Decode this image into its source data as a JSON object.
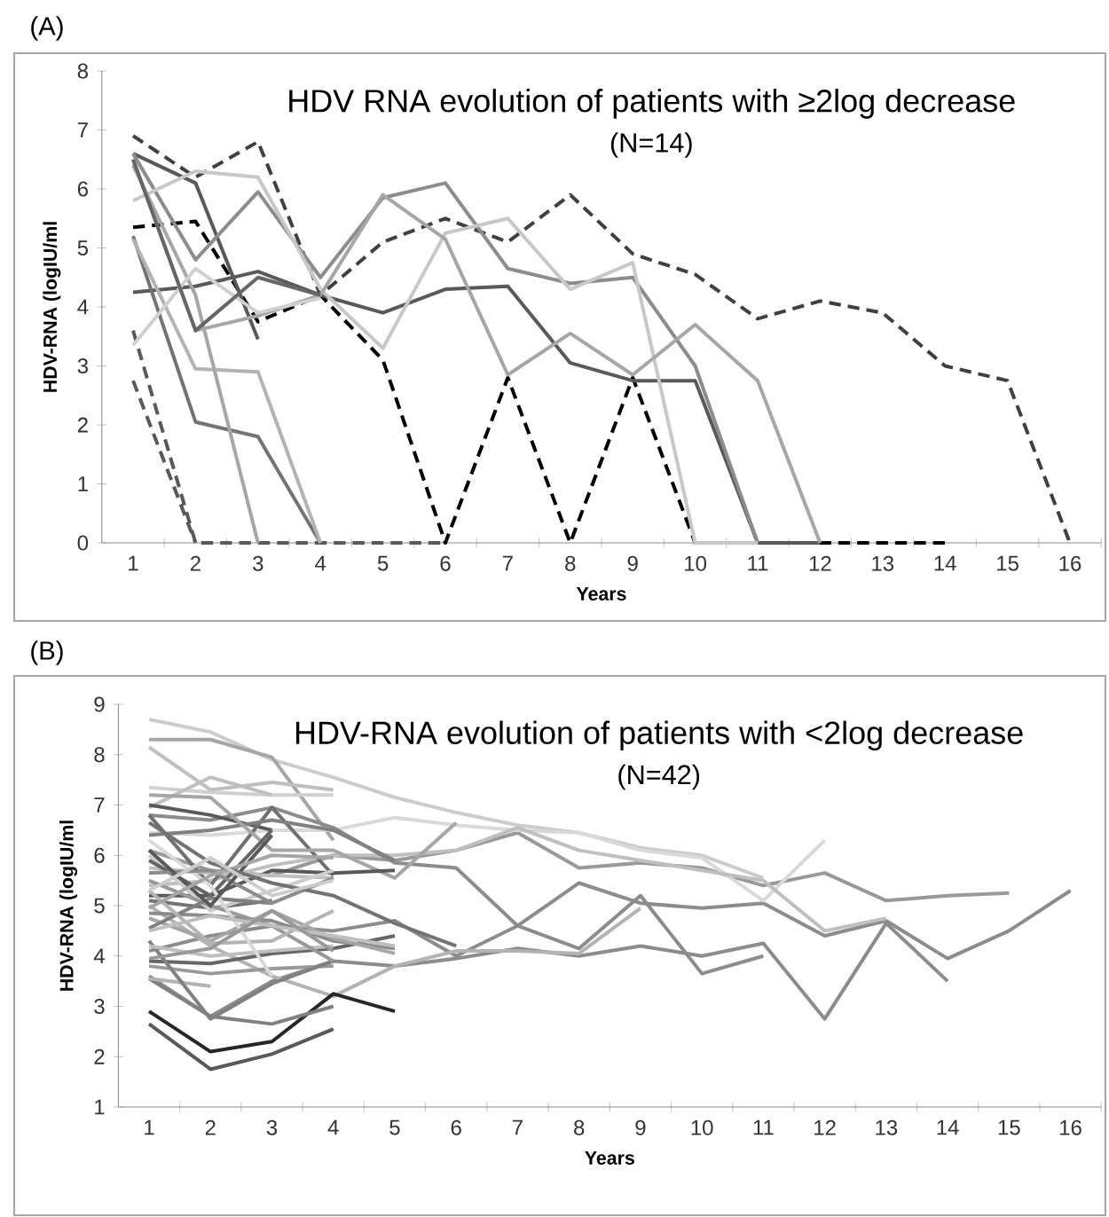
{
  "chart_data": [
    {
      "type": "line",
      "title": "HDV RNA evolution of patients with ≥2log decrease",
      "subtitle": "(N=14)",
      "xlabel": "Years",
      "ylabel": "HDV-RNA (logIU/ml",
      "annotations": [
        "(A)"
      ],
      "categories": [
        "1",
        "2",
        "3",
        "4",
        "5",
        "6",
        "7",
        "8",
        "9",
        "10",
        "11",
        "12",
        "13",
        "14",
        "15",
        "16"
      ],
      "ylim": [
        0,
        8
      ],
      "yticks": [
        0,
        1,
        2,
        3,
        4,
        5,
        6,
        7,
        8
      ],
      "series": [
        {
          "color": "#404040",
          "line_style": "dashed",
          "values": [
            6.9,
            6.2,
            6.8,
            4.2,
            5.1,
            5.5,
            5.1,
            5.9,
            4.9,
            4.55,
            3.8,
            4.1,
            3.9,
            3.0,
            2.75,
            0
          ]
        },
        {
          "color": "#000000",
          "line_style": "dashed",
          "values": [
            5.35,
            5.45,
            3.75,
            4.2,
            3.1,
            0,
            2.8,
            0,
            2.8,
            0,
            0,
            0,
            0,
            0,
            null,
            null
          ]
        },
        {
          "color": "#595959",
          "line_style": "dashed",
          "values": [
            3.6,
            0,
            0,
            0,
            0,
            0,
            null,
            null,
            null,
            null,
            null,
            null,
            null,
            null,
            null,
            null
          ]
        },
        {
          "color": "#595959",
          "line_style": "dashed",
          "values": [
            2.75,
            0,
            null,
            null,
            null,
            null,
            null,
            null,
            null,
            null,
            null,
            null,
            null,
            null,
            null,
            null
          ]
        },
        {
          "color": "#595959",
          "line_style": "solid",
          "values": [
            4.25,
            4.35,
            4.6,
            4.2,
            3.9,
            4.3,
            4.35,
            3.05,
            2.75,
            2.75,
            0,
            0,
            null,
            null,
            null,
            null
          ]
        },
        {
          "color": "#595959",
          "line_style": "solid",
          "values": [
            6.6,
            6.1,
            3.45,
            null,
            null,
            null,
            null,
            null,
            null,
            null,
            null,
            null,
            null,
            null,
            null,
            null
          ]
        },
        {
          "color": "#8c8c8c",
          "line_style": "solid",
          "values": [
            6.6,
            4.8,
            5.95,
            4.5,
            5.85,
            6.1,
            4.65,
            4.4,
            4.5,
            3.0,
            0,
            null,
            null,
            null,
            null,
            null
          ]
        },
        {
          "color": "#c8c8c8",
          "line_style": "solid",
          "values": [
            5.8,
            6.3,
            6.2,
            4.3,
            3.3,
            5.25,
            5.5,
            4.3,
            4.75,
            0,
            0,
            null,
            null,
            null,
            null,
            null
          ]
        },
        {
          "color": "#a6a6a6",
          "line_style": "solid",
          "values": [
            6.5,
            3.6,
            3.85,
            4.2,
            5.9,
            5.15,
            2.85,
            3.55,
            2.85,
            3.7,
            2.75,
            0,
            null,
            null,
            null,
            null
          ]
        },
        {
          "color": "#737373",
          "line_style": "solid",
          "values": [
            5.2,
            2.05,
            1.8,
            0,
            null,
            null,
            null,
            null,
            null,
            null,
            null,
            null,
            null,
            null,
            null,
            null
          ]
        },
        {
          "color": "#b3b3b3",
          "line_style": "solid",
          "values": [
            5.15,
            2.95,
            2.9,
            0,
            null,
            null,
            null,
            null,
            null,
            null,
            null,
            null,
            null,
            null,
            null,
            null
          ]
        },
        {
          "color": "#a6a6a6",
          "line_style": "solid",
          "values": [
            6.4,
            4.2,
            0,
            null,
            null,
            null,
            null,
            null,
            null,
            null,
            null,
            null,
            null,
            null,
            null,
            null
          ]
        },
        {
          "color": "#d0d0d0",
          "line_style": "solid",
          "values": [
            3.35,
            4.65,
            3.9,
            4.15,
            null,
            null,
            null,
            null,
            null,
            null,
            null,
            null,
            null,
            null,
            null,
            null
          ]
        },
        {
          "color": "#666666",
          "line_style": "solid",
          "values": [
            6.5,
            3.6,
            4.5,
            4.2,
            null,
            null,
            null,
            null,
            null,
            null,
            null,
            null,
            null,
            null,
            null,
            null
          ]
        }
      ]
    },
    {
      "type": "line",
      "title": "HDV-RNA evolution of patients with <2log decrease",
      "subtitle": "(N=42)",
      "xlabel": "Years",
      "ylabel": "HDV-RNA (logIU/ml",
      "annotations": [
        "(B)"
      ],
      "categories": [
        "1",
        "2",
        "3",
        "4",
        "5",
        "6",
        "7",
        "8",
        "9",
        "10",
        "11",
        "12",
        "13",
        "14",
        "15",
        "16"
      ],
      "ylim": [
        1,
        9
      ],
      "yticks": [
        1,
        2,
        3,
        4,
        5,
        6,
        7,
        8,
        9
      ],
      "series": [
        {
          "color": "#cccccc",
          "values": [
            8.7,
            8.45,
            7.9,
            7.55,
            7.15,
            6.85,
            6.6,
            6.45,
            6.15,
            6.0,
            5.55,
            null,
            null,
            null,
            null,
            null
          ]
        },
        {
          "color": "#a6a6a6",
          "values": [
            8.3,
            8.3,
            7.95,
            6.3,
            null,
            null,
            null,
            null,
            null,
            null,
            null,
            null,
            null,
            null,
            null,
            null
          ]
        },
        {
          "color": "#bfbfbf",
          "values": [
            8.15,
            7.3,
            7.45,
            7.3,
            null,
            null,
            null,
            null,
            null,
            null,
            null,
            null,
            null,
            null,
            null,
            null
          ]
        },
        {
          "color": "#d0d0d0",
          "values": [
            7.35,
            7.25,
            7.2,
            7.2,
            null,
            null,
            null,
            null,
            null,
            null,
            null,
            null,
            null,
            null,
            null,
            null
          ]
        },
        {
          "color": "#bfbfbf",
          "values": [
            6.95,
            7.55,
            7.2,
            null,
            null,
            null,
            null,
            null,
            null,
            null,
            null,
            null,
            null,
            null,
            null,
            null
          ]
        },
        {
          "color": "#999999",
          "values": [
            6.1,
            5.7,
            5.6,
            6.0,
            5.9,
            6.1,
            6.45,
            5.75,
            5.85,
            5.75,
            5.4,
            5.65,
            5.1,
            5.2,
            5.25,
            null
          ]
        },
        {
          "color": "#8c8c8c",
          "values": [
            4.1,
            4.4,
            4.6,
            4.5,
            4.7,
            4.0,
            4.6,
            5.45,
            5.05,
            4.95,
            5.05,
            4.4,
            4.7,
            3.95,
            4.5,
            5.3
          ]
        },
        {
          "color": "#8c8c8c",
          "values": [
            3.6,
            2.8,
            3.5,
            3.9,
            3.8,
            3.95,
            4.15,
            4.0,
            4.2,
            4.0,
            4.25,
            2.75,
            4.65,
            3.5,
            null,
            null
          ]
        },
        {
          "color": "#d9d9d9",
          "values": [
            6.45,
            6.4,
            6.5,
            6.5,
            6.75,
            6.6,
            6.5,
            6.45,
            6.1,
            5.95,
            5.1,
            6.3,
            null,
            null,
            null,
            null
          ]
        },
        {
          "color": "#bfbfbf",
          "values": [
            5.4,
            5.5,
            5.8,
            6.0,
            6.0,
            6.1,
            6.55,
            6.1,
            5.9,
            5.7,
            5.5,
            4.5,
            4.75,
            null,
            null,
            null
          ]
        },
        {
          "color": "#8c8c8c",
          "values": [
            6.8,
            6.7,
            6.95,
            6.55,
            5.85,
            5.75,
            4.6,
            4.15,
            5.2,
            3.65,
            4.0,
            null,
            null,
            null,
            null,
            null
          ]
        },
        {
          "color": "#b3b3b3",
          "values": [
            5.0,
            4.2,
            3.6,
            3.2,
            3.8,
            4.1,
            4.1,
            4.05,
            4.95,
            null,
            null,
            null,
            null,
            null,
            null,
            null
          ]
        },
        {
          "color": "#262626",
          "values": [
            2.9,
            2.1,
            2.3,
            3.25,
            2.9,
            null,
            null,
            null,
            null,
            null,
            null,
            null,
            null,
            null,
            null,
            null
          ]
        },
        {
          "color": "#595959",
          "values": [
            2.65,
            1.75,
            2.05,
            2.55,
            null,
            null,
            null,
            null,
            null,
            null,
            null,
            null,
            null,
            null,
            null,
            null
          ]
        },
        {
          "color": "#808080",
          "values": [
            3.55,
            2.8,
            2.65,
            3.0,
            null,
            null,
            null,
            null,
            null,
            null,
            null,
            null,
            null,
            null,
            null,
            null
          ]
        },
        {
          "color": "#666666",
          "values": [
            3.9,
            3.85,
            4.05,
            4.15,
            4.4,
            null,
            null,
            null,
            null,
            null,
            null,
            null,
            null,
            null,
            null,
            null
          ]
        },
        {
          "color": "#999999",
          "values": [
            3.8,
            3.65,
            3.75,
            3.8,
            null,
            null,
            null,
            null,
            null,
            null,
            null,
            null,
            null,
            null,
            null,
            null
          ]
        },
        {
          "color": "#b3b3b3",
          "values": [
            3.55,
            3.4,
            null,
            null,
            null,
            null,
            null,
            null,
            null,
            null,
            null,
            null,
            null,
            null,
            null,
            null
          ]
        },
        {
          "color": "#808080",
          "values": [
            4.3,
            2.75,
            3.45,
            3.9,
            null,
            null,
            null,
            null,
            null,
            null,
            null,
            null,
            null,
            null,
            null,
            null
          ]
        },
        {
          "color": "#595959",
          "values": [
            7.0,
            6.8,
            6.5,
            null,
            null,
            null,
            null,
            null,
            null,
            null,
            null,
            null,
            null,
            null,
            null,
            null
          ]
        },
        {
          "color": "#707070",
          "values": [
            6.8,
            5.4,
            6.95,
            5.6,
            null,
            null,
            null,
            null,
            null,
            null,
            null,
            null,
            null,
            null,
            null,
            null
          ]
        },
        {
          "color": "#808080",
          "values": [
            6.4,
            6.5,
            6.7,
            6.5,
            5.9,
            null,
            null,
            null,
            null,
            null,
            null,
            null,
            null,
            null,
            null,
            null
          ]
        },
        {
          "color": "#a6a6a6",
          "values": [
            7.2,
            7.15,
            6.1,
            6.1,
            5.55,
            6.65,
            null,
            null,
            null,
            null,
            null,
            null,
            null,
            null,
            null,
            null
          ]
        },
        {
          "color": "#595959",
          "values": [
            5.2,
            5.2,
            5.7,
            5.65,
            5.7,
            null,
            null,
            null,
            null,
            null,
            null,
            null,
            null,
            null,
            null,
            null
          ]
        },
        {
          "color": "#737373",
          "values": [
            5.1,
            4.95,
            5.1,
            null,
            null,
            null,
            null,
            null,
            null,
            null,
            null,
            null,
            null,
            null,
            null,
            null
          ]
        },
        {
          "color": "#8c8c8c",
          "values": [
            4.85,
            4.8,
            4.7,
            4.3,
            4.15,
            null,
            null,
            null,
            null,
            null,
            null,
            null,
            null,
            null,
            null,
            null
          ]
        },
        {
          "color": "#bfbfbf",
          "values": [
            5.75,
            5.65,
            5.6,
            5.55,
            null,
            null,
            null,
            null,
            null,
            null,
            null,
            null,
            null,
            null,
            null,
            null
          ]
        },
        {
          "color": "#cccccc",
          "values": [
            6.0,
            4.9,
            5.3,
            5.7,
            null,
            null,
            null,
            null,
            null,
            null,
            null,
            null,
            null,
            null,
            null,
            null
          ]
        },
        {
          "color": "#bfbfbf",
          "values": [
            4.2,
            4.0,
            4.1,
            4.2,
            null,
            null,
            null,
            null,
            null,
            null,
            null,
            null,
            null,
            null,
            null,
            null
          ]
        },
        {
          "color": "#999999",
          "values": [
            5.5,
            5.0,
            4.6,
            3.9,
            null,
            null,
            null,
            null,
            null,
            null,
            null,
            null,
            null,
            null,
            null,
            null
          ]
        },
        {
          "color": "#666666",
          "values": [
            5.9,
            5.2,
            6.5,
            null,
            null,
            null,
            null,
            null,
            null,
            null,
            null,
            null,
            null,
            null,
            null,
            null
          ]
        },
        {
          "color": "#a6a6a6",
          "values": [
            4.75,
            4.3,
            4.9,
            4.35,
            4.05,
            null,
            null,
            null,
            null,
            null,
            null,
            null,
            null,
            null,
            null,
            null
          ]
        },
        {
          "color": "#808080",
          "values": [
            4.55,
            5.15,
            5.05,
            null,
            null,
            null,
            null,
            null,
            null,
            null,
            null,
            null,
            null,
            null,
            null,
            null
          ]
        },
        {
          "color": "#b3b3b3",
          "values": [
            5.3,
            4.25,
            4.3,
            4.9,
            null,
            null,
            null,
            null,
            null,
            null,
            null,
            null,
            null,
            null,
            null,
            null
          ]
        },
        {
          "color": "#d9d9d9",
          "values": [
            6.3,
            5.4,
            3.6,
            null,
            null,
            null,
            null,
            null,
            null,
            null,
            null,
            null,
            null,
            null,
            null,
            null
          ]
        },
        {
          "color": "#8c8c8c",
          "values": [
            5.65,
            5.7,
            5.05,
            5.55,
            null,
            null,
            null,
            null,
            null,
            null,
            null,
            null,
            null,
            null,
            null,
            null
          ]
        },
        {
          "color": "#595959",
          "values": [
            6.1,
            5.0,
            6.4,
            null,
            null,
            null,
            null,
            null,
            null,
            null,
            null,
            null,
            null,
            null,
            null,
            null
          ]
        },
        {
          "color": "#a6a6a6",
          "values": [
            4.95,
            5.6,
            6.0,
            5.95,
            null,
            null,
            null,
            null,
            null,
            null,
            null,
            null,
            null,
            null,
            null,
            null
          ]
        },
        {
          "color": "#737373",
          "values": [
            6.65,
            5.85,
            5.45,
            5.2,
            4.65,
            4.2,
            null,
            null,
            null,
            null,
            null,
            null,
            null,
            null,
            null,
            null
          ]
        },
        {
          "color": "#bfbfbf",
          "values": [
            4.5,
            4.8,
            4.6,
            4.4,
            4.2,
            null,
            null,
            null,
            null,
            null,
            null,
            null,
            null,
            null,
            null,
            null
          ]
        },
        {
          "color": "#999999",
          "values": [
            3.95,
            4.15,
            4.9,
            4.1,
            null,
            null,
            null,
            null,
            null,
            null,
            null,
            null,
            null,
            null,
            null,
            null
          ]
        },
        {
          "color": "#cccccc",
          "values": [
            5.3,
            5.95,
            5.2,
            5.5,
            null,
            null,
            null,
            null,
            null,
            null,
            null,
            null,
            null,
            null,
            null,
            null
          ]
        }
      ]
    }
  ]
}
